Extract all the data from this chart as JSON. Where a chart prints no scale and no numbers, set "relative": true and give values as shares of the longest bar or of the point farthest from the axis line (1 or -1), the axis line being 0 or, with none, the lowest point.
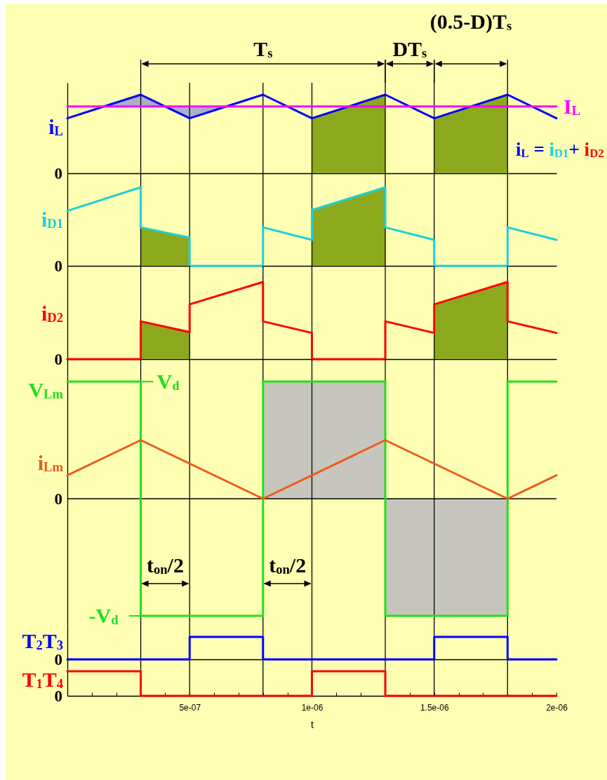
{
  "chart_data": [
    {
      "type": "line",
      "relative": true,
      "xlim": [
        0,
        2e-06
      ],
      "tick_labels": false,
      "series": [
        {
          "name": "i$_{L}$",
          "color": "#0000ff",
          "x": [
            0,
            1.5e-07,
            3e-07,
            4e-07,
            5e-07,
            6.5e-07,
            8e-07,
            1e-06,
            1.3e-06,
            1.5e-06,
            1.8e-06,
            2e-06
          ],
          "values": [
            0.7,
            0.85,
            1,
            0.85,
            0.7,
            0.85,
            1,
            0.7,
            1,
            0.7,
            1,
            0.7
          ],
          "lower": [
            null,
            0.85,
            0.85,
            0.85,
            0.7,
            0.85,
            null,
            null,
            null,
            null,
            null,
            null
          ],
          "upper": [
            null,
            0.85,
            1,
            0.85,
            0.85,
            0.85,
            null,
            null,
            null,
            null,
            null,
            null
          ]
        },
        {
          "name": "I$_{L}$",
          "color": "#ff00ff",
          "x": [
            0,
            2e-06
          ],
          "values": [
            0.85,
            0.85
          ]
        },
        {
          "type": "area",
          "color": "#8ca91e",
          "x": [
            1e-06,
            1.3e-06
          ],
          "values": [
            0.7,
            1
          ]
        },
        {
          "type": "area",
          "color": "#8ca91e",
          "x": [
            1.5e-06,
            1.8e-06
          ],
          "values": [
            0.7,
            1
          ]
        }
      ],
      "ref_lines": [
        {
          "axis": "x",
          "value": 3e-07
        },
        {
          "axis": "x",
          "value": 5e-07
        },
        {
          "axis": "x",
          "value": 8e-07
        },
        {
          "axis": "x",
          "value": 1e-06
        },
        {
          "axis": "x",
          "value": 1.3e-06
        },
        {
          "axis": "x",
          "value": 1.5e-06
        },
        {
          "axis": "x",
          "value": 1.8e-06
        }
      ],
      "annotations": [
        "(0.5-D)T$_{s}$",
        "T$_{s}$",
        "DT$_{s}$",
        "i$_{L}$ = i$_{D1}$+ i$_{D2}$",
        "0"
      ]
    },
    {
      "type": "line",
      "relative": true,
      "xlim": [
        0,
        2e-06
      ],
      "tick_labels": false,
      "series": [
        {
          "name": "i$_{D1}$",
          "color": "#1ecfd6",
          "x": [
            0,
            3e-07,
            3e-07,
            5e-07,
            5e-07,
            8e-07,
            8e-07,
            1e-06,
            1e-06,
            1.3e-06,
            1.3e-06,
            1.5e-06,
            1.5e-06,
            1.8e-06,
            1.8e-06,
            2e-06
          ],
          "values": [
            0.7,
            1,
            0.49,
            0.36,
            0,
            0,
            0.49,
            0.33,
            0.71,
            1,
            0.49,
            0.33,
            0,
            0,
            0.49,
            0.33
          ]
        },
        {
          "type": "area",
          "color": "#8ca91e",
          "x": [
            3e-07,
            5e-07
          ],
          "values": [
            0.49,
            0.36
          ]
        },
        {
          "type": "area",
          "color": "#8ca91e",
          "x": [
            1e-06,
            1.3e-06
          ],
          "values": [
            0.71,
            1
          ]
        }
      ],
      "ref_lines": [
        {
          "axis": "x",
          "value": 3e-07
        },
        {
          "axis": "x",
          "value": 5e-07
        },
        {
          "axis": "x",
          "value": 8e-07
        },
        {
          "axis": "x",
          "value": 1e-06
        },
        {
          "axis": "x",
          "value": 1.3e-06
        },
        {
          "axis": "x",
          "value": 1.5e-06
        },
        {
          "axis": "x",
          "value": 1.8e-06
        }
      ],
      "annotations": [
        "0"
      ]
    },
    {
      "type": "line",
      "relative": true,
      "xlim": [
        0,
        2e-06
      ],
      "tick_labels": false,
      "series": [
        {
          "name": "i$_{D2}$",
          "color": "#ff0000",
          "x": [
            0,
            3e-07,
            3e-07,
            5e-07,
            5e-07,
            8e-07,
            8e-07,
            1e-06,
            1e-06,
            1.3e-06,
            1.3e-06,
            1.5e-06,
            1.5e-06,
            1.8e-06,
            1.8e-06,
            2e-06
          ],
          "values": [
            0,
            0,
            0.49,
            0.35,
            0.71,
            1,
            0.49,
            0.34,
            0,
            0,
            0.49,
            0.34,
            0.71,
            1,
            0.49,
            0.34
          ]
        },
        {
          "type": "area",
          "color": "#8ca91e",
          "x": [
            3e-07,
            5e-07
          ],
          "values": [
            0.49,
            0.35
          ]
        },
        {
          "type": "area",
          "color": "#8ca91e",
          "x": [
            1.5e-06,
            1.8e-06
          ],
          "values": [
            0.71,
            1
          ]
        }
      ],
      "ref_lines": [
        {
          "axis": "x",
          "value": 3e-07
        },
        {
          "axis": "x",
          "value": 5e-07
        },
        {
          "axis": "x",
          "value": 8e-07
        },
        {
          "axis": "x",
          "value": 1e-06
        },
        {
          "axis": "x",
          "value": 1.3e-06
        },
        {
          "axis": "x",
          "value": 1.5e-06
        },
        {
          "axis": "x",
          "value": 1.8e-06
        }
      ],
      "annotations": [
        "0"
      ]
    },
    {
      "type": "line",
      "relative": true,
      "xlim": [
        0,
        2e-06
      ],
      "tick_labels": false,
      "series": [
        {
          "name": "V$_{Lm}$",
          "color": "#1ee01e",
          "x": [
            0,
            3e-07,
            3e-07,
            8e-07,
            8e-07,
            1.3e-06,
            1.3e-06,
            1.8e-06,
            1.8e-06,
            2e-06
          ],
          "values": [
            1,
            1,
            -1,
            -1,
            1,
            1,
            -1,
            -1,
            1,
            1
          ]
        },
        {
          "name": "i$_{Lm}$",
          "color": "#ef5a19",
          "x": [
            0,
            3e-07,
            8e-07,
            1.3e-06,
            1.8e-06,
            2e-06
          ],
          "values": [
            0.2,
            0.5,
            0,
            0.5,
            0,
            0.2
          ]
        },
        {
          "type": "area",
          "color": "#c6c6bf",
          "x": [
            8e-07,
            1.3e-06
          ],
          "values": [
            1,
            1
          ]
        },
        {
          "type": "area",
          "color": "#c6c6bf",
          "x": [
            1.3e-06,
            1.8e-06
          ],
          "values": [
            -1,
            -1
          ]
        }
      ],
      "ref_lines": [
        {
          "axis": "y",
          "value": 0,
          "label": "0"
        },
        {
          "axis": "x",
          "value": 3e-07
        },
        {
          "axis": "x",
          "value": 5e-07
        },
        {
          "axis": "x",
          "value": 8e-07
        },
        {
          "axis": "x",
          "value": 1e-06
        },
        {
          "axis": "x",
          "value": 1.3e-06
        },
        {
          "axis": "x",
          "value": 1.5e-06
        },
        {
          "axis": "x",
          "value": 1.8e-06
        }
      ],
      "annotations": [
        "t$_{on}$/2",
        "t$_{on}$/2",
        {
          "text": "V$_{d}$",
          "x": 3e-07,
          "y": 1
        },
        {
          "text": "-V$_{d}$",
          "x": 3e-07,
          "y": -1
        }
      ]
    },
    {
      "type": "line",
      "relative": true,
      "xlim": [
        0,
        2e-06
      ],
      "tick_labels": false,
      "series": [
        {
          "name": "T$_{2}$T$_{3}$",
          "color": "#0000ff",
          "x": [
            0,
            5e-07,
            5e-07,
            8e-07,
            8e-07,
            1.5e-06,
            1.5e-06,
            1.8e-06,
            1.8e-06,
            2e-06
          ],
          "values": [
            0,
            0,
            1,
            1,
            0,
            0,
            1,
            1,
            0,
            0
          ]
        }
      ],
      "ref_lines": [
        {
          "axis": "x",
          "value": 3e-07
        },
        {
          "axis": "x",
          "value": 5e-07
        },
        {
          "axis": "x",
          "value": 8e-07
        },
        {
          "axis": "x",
          "value": 1e-06
        },
        {
          "axis": "x",
          "value": 1.3e-06
        },
        {
          "axis": "x",
          "value": 1.5e-06
        },
        {
          "axis": "x",
          "value": 1.8e-06
        }
      ],
      "annotations": [
        "0"
      ]
    },
    {
      "type": "line",
      "relative": true,
      "xlim": [
        0,
        2e-06
      ],
      "tick_labels": "x",
      "xlabel": "t",
      "xticks": [
        {
          "value": 0,
          "label": null
        },
        {
          "value": 1e-07,
          "label": null
        },
        {
          "value": 2e-07,
          "label": null
        },
        {
          "value": 3e-07,
          "label": null
        },
        {
          "value": 4e-07,
          "label": null
        },
        {
          "value": 5e-07,
          "label": "5e-07"
        },
        {
          "value": 6e-07,
          "label": null
        },
        {
          "value": 7e-07,
          "label": null
        },
        {
          "value": 8e-07,
          "label": null
        },
        {
          "value": 9e-07,
          "label": null
        },
        {
          "value": 1e-06,
          "label": "1e-06"
        },
        {
          "value": 1.1e-06,
          "label": null
        },
        {
          "value": 1.2e-06,
          "label": null
        },
        {
          "value": 1.3e-06,
          "label": null
        },
        {
          "value": 1.4e-06,
          "label": null
        },
        {
          "value": 1.5e-06,
          "label": "1.5e-06"
        },
        {
          "value": 1.6e-06,
          "label": null
        },
        {
          "value": 1.7e-06,
          "label": null
        },
        {
          "value": 1.8e-06,
          "label": null
        },
        {
          "value": 1.9e-06,
          "label": null
        },
        {
          "value": 2e-06,
          "label": "2e-06"
        }
      ],
      "series": [
        {
          "name": "T$_{1}$T$_{4}$",
          "color": "#ff0000",
          "x": [
            0,
            3e-07,
            3e-07,
            1e-06,
            1e-06,
            1.3e-06,
            1.3e-06,
            2e-06
          ],
          "values": [
            1,
            1,
            0,
            0,
            1,
            1,
            0,
            0
          ]
        }
      ],
      "ref_lines": [
        {
          "axis": "x",
          "value": 3e-07
        },
        {
          "axis": "x",
          "value": 5e-07
        },
        {
          "axis": "x",
          "value": 8e-07
        },
        {
          "axis": "x",
          "value": 1e-06
        },
        {
          "axis": "x",
          "value": 1.3e-06
        },
        {
          "axis": "x",
          "value": 1.5e-06
        },
        {
          "axis": "x",
          "value": 1.8e-06
        }
      ],
      "annotations": [
        "0"
      ]
    }
  ]
}
